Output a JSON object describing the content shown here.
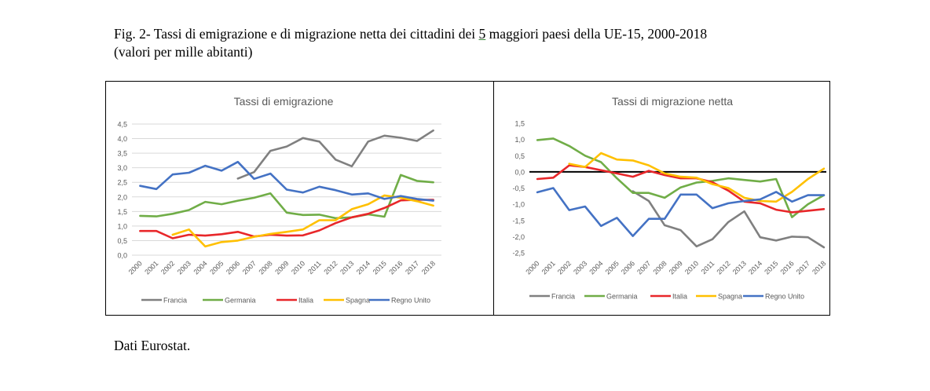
{
  "caption": {
    "line1_a": "Fig. 2- Tassi di emigrazione e di migrazione netta dei cittadini dei ",
    "line1_u": "5",
    "line1_b": " maggiori paesi della UE-15, 2000-2018",
    "line2": "(valori per mille abitanti)"
  },
  "footer": "Dati Eurostat.",
  "colors": {
    "Francia": "#808080",
    "Germania": "#70ad47",
    "Italia": "#e8272a",
    "Spagna": "#ffc000",
    "Regno Unito": "#4472c4"
  },
  "chart_data": [
    {
      "type": "line",
      "title": "Tassi di emigrazione",
      "categories": [
        "2000",
        "2001",
        "2002",
        "2003",
        "2004",
        "2005",
        "2006",
        "2007",
        "2008",
        "2009",
        "2010",
        "2011",
        "2012",
        "2013",
        "2014",
        "2015",
        "2016",
        "2017",
        "2018"
      ],
      "yticks": [
        "4,5",
        "4,0",
        "3,5",
        "3,0",
        "2,5",
        "2,0",
        "1,5",
        "1,0",
        "0,5",
        "0,0"
      ],
      "ylim": [
        0,
        4.5
      ],
      "grid": true,
      "legend": "bottom",
      "series": [
        {
          "name": "Francia",
          "values": [
            null,
            null,
            null,
            null,
            null,
            null,
            2.63,
            2.85,
            3.58,
            3.73,
            4.02,
            3.9,
            3.28,
            3.05,
            3.9,
            4.1,
            4.03,
            3.92,
            4.28
          ]
        },
        {
          "name": "Germania",
          "values": [
            1.35,
            1.33,
            1.42,
            1.55,
            1.83,
            1.75,
            1.87,
            1.97,
            2.12,
            1.46,
            1.38,
            1.39,
            1.27,
            1.3,
            1.4,
            1.32,
            2.75,
            2.55,
            2.5
          ]
        },
        {
          "name": "Italia",
          "values": [
            0.83,
            0.83,
            0.58,
            0.7,
            0.67,
            0.72,
            0.8,
            0.64,
            0.7,
            0.67,
            0.68,
            0.85,
            1.1,
            1.3,
            1.42,
            1.62,
            1.88,
            1.9,
            1.9
          ]
        },
        {
          "name": "Spagna",
          "values": [
            null,
            null,
            0.7,
            0.88,
            0.3,
            0.45,
            0.5,
            0.63,
            0.73,
            0.8,
            0.88,
            1.2,
            1.2,
            1.58,
            1.75,
            2.05,
            1.97,
            1.85,
            1.7
          ]
        },
        {
          "name": "Regno Unito",
          "values": [
            2.38,
            2.27,
            2.77,
            2.83,
            3.07,
            2.9,
            3.2,
            2.62,
            2.8,
            2.25,
            2.15,
            2.35,
            2.23,
            2.08,
            2.12,
            1.93,
            2.03,
            1.93,
            1.87
          ]
        }
      ]
    },
    {
      "type": "line",
      "title": "Tassi di migrazione netta",
      "categories": [
        "2000",
        "2001",
        "2002",
        "2003",
        "2004",
        "2005",
        "2006",
        "2007",
        "2008",
        "2009",
        "2010",
        "2011",
        "2012",
        "2013",
        "2014",
        "2015",
        "2016",
        "2017",
        "2018"
      ],
      "yticks": [
        "1,5",
        "1,0",
        "0,5",
        "0,0",
        "-0,5",
        "-1,0",
        "-1,5",
        "-2,0",
        "-2,5"
      ],
      "ylim": [
        -2.5,
        1.5
      ],
      "grid": false,
      "legend": "bottom",
      "series": [
        {
          "name": "Francia",
          "values": [
            null,
            null,
            null,
            null,
            null,
            null,
            -0.6,
            -0.9,
            -1.65,
            -1.8,
            -2.3,
            -2.08,
            -1.55,
            -1.22,
            -2.02,
            -2.12,
            -2.0,
            -2.02,
            -2.33
          ]
        },
        {
          "name": "Germania",
          "values": [
            0.98,
            1.03,
            0.8,
            0.5,
            0.3,
            -0.2,
            -0.65,
            -0.65,
            -0.8,
            -0.48,
            -0.33,
            -0.28,
            -0.2,
            -0.25,
            -0.3,
            -0.22,
            -1.4,
            -1.0,
            -0.72
          ]
        },
        {
          "name": "Italia",
          "values": [
            -0.22,
            -0.18,
            0.2,
            0.15,
            0.05,
            -0.05,
            -0.15,
            0.03,
            -0.1,
            -0.2,
            -0.2,
            -0.32,
            -0.58,
            -0.92,
            -0.97,
            -1.17,
            -1.25,
            -1.2,
            -1.15
          ]
        },
        {
          "name": "Spagna",
          "values": [
            null,
            null,
            0.25,
            0.15,
            0.58,
            0.38,
            0.35,
            0.2,
            -0.05,
            -0.15,
            -0.18,
            -0.38,
            -0.5,
            -0.8,
            -0.9,
            -0.92,
            -0.62,
            -0.22,
            0.1
          ]
        },
        {
          "name": "Regno Unito",
          "values": [
            -0.63,
            -0.5,
            -1.18,
            -1.07,
            -1.67,
            -1.42,
            -1.98,
            -1.45,
            -1.45,
            -0.7,
            -0.7,
            -1.12,
            -0.97,
            -0.9,
            -0.85,
            -0.62,
            -0.92,
            -0.72,
            -0.72
          ]
        }
      ]
    }
  ]
}
